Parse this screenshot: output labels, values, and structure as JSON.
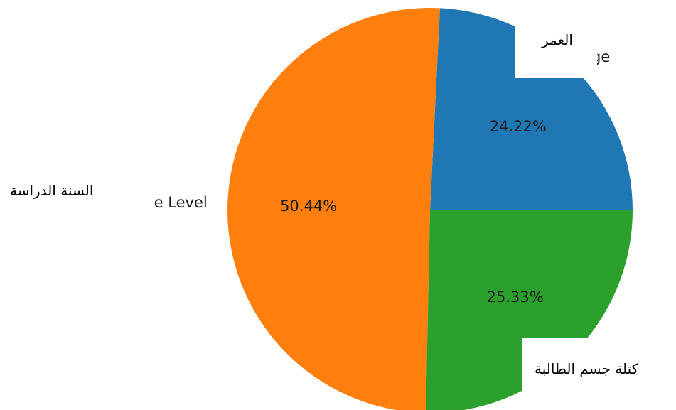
{
  "chart_data": {
    "type": "pie",
    "slices": [
      {
        "label": "Age",
        "visible_label_fragment": "ge",
        "value": 24.22,
        "pct_label": "24.22%",
        "color": "#1f77b4"
      },
      {
        "label": "Grade Level",
        "visible_label_fragment": "e Level",
        "value": 50.44,
        "pct_label": "50.44%",
        "color": "#ff7f0e"
      },
      {
        "label": "BMI",
        "visible_label_fragment": "",
        "value": 25.33,
        "pct_label": "25.33%",
        "color": "#2ca02c"
      }
    ],
    "start_angle_deg": 0,
    "direction": "counterclockwise"
  },
  "overlays": {
    "age_ar": "العمر",
    "grade_ar": "السنة الدراسة",
    "bmi_ar": "كتلة جسم الطالبة"
  }
}
